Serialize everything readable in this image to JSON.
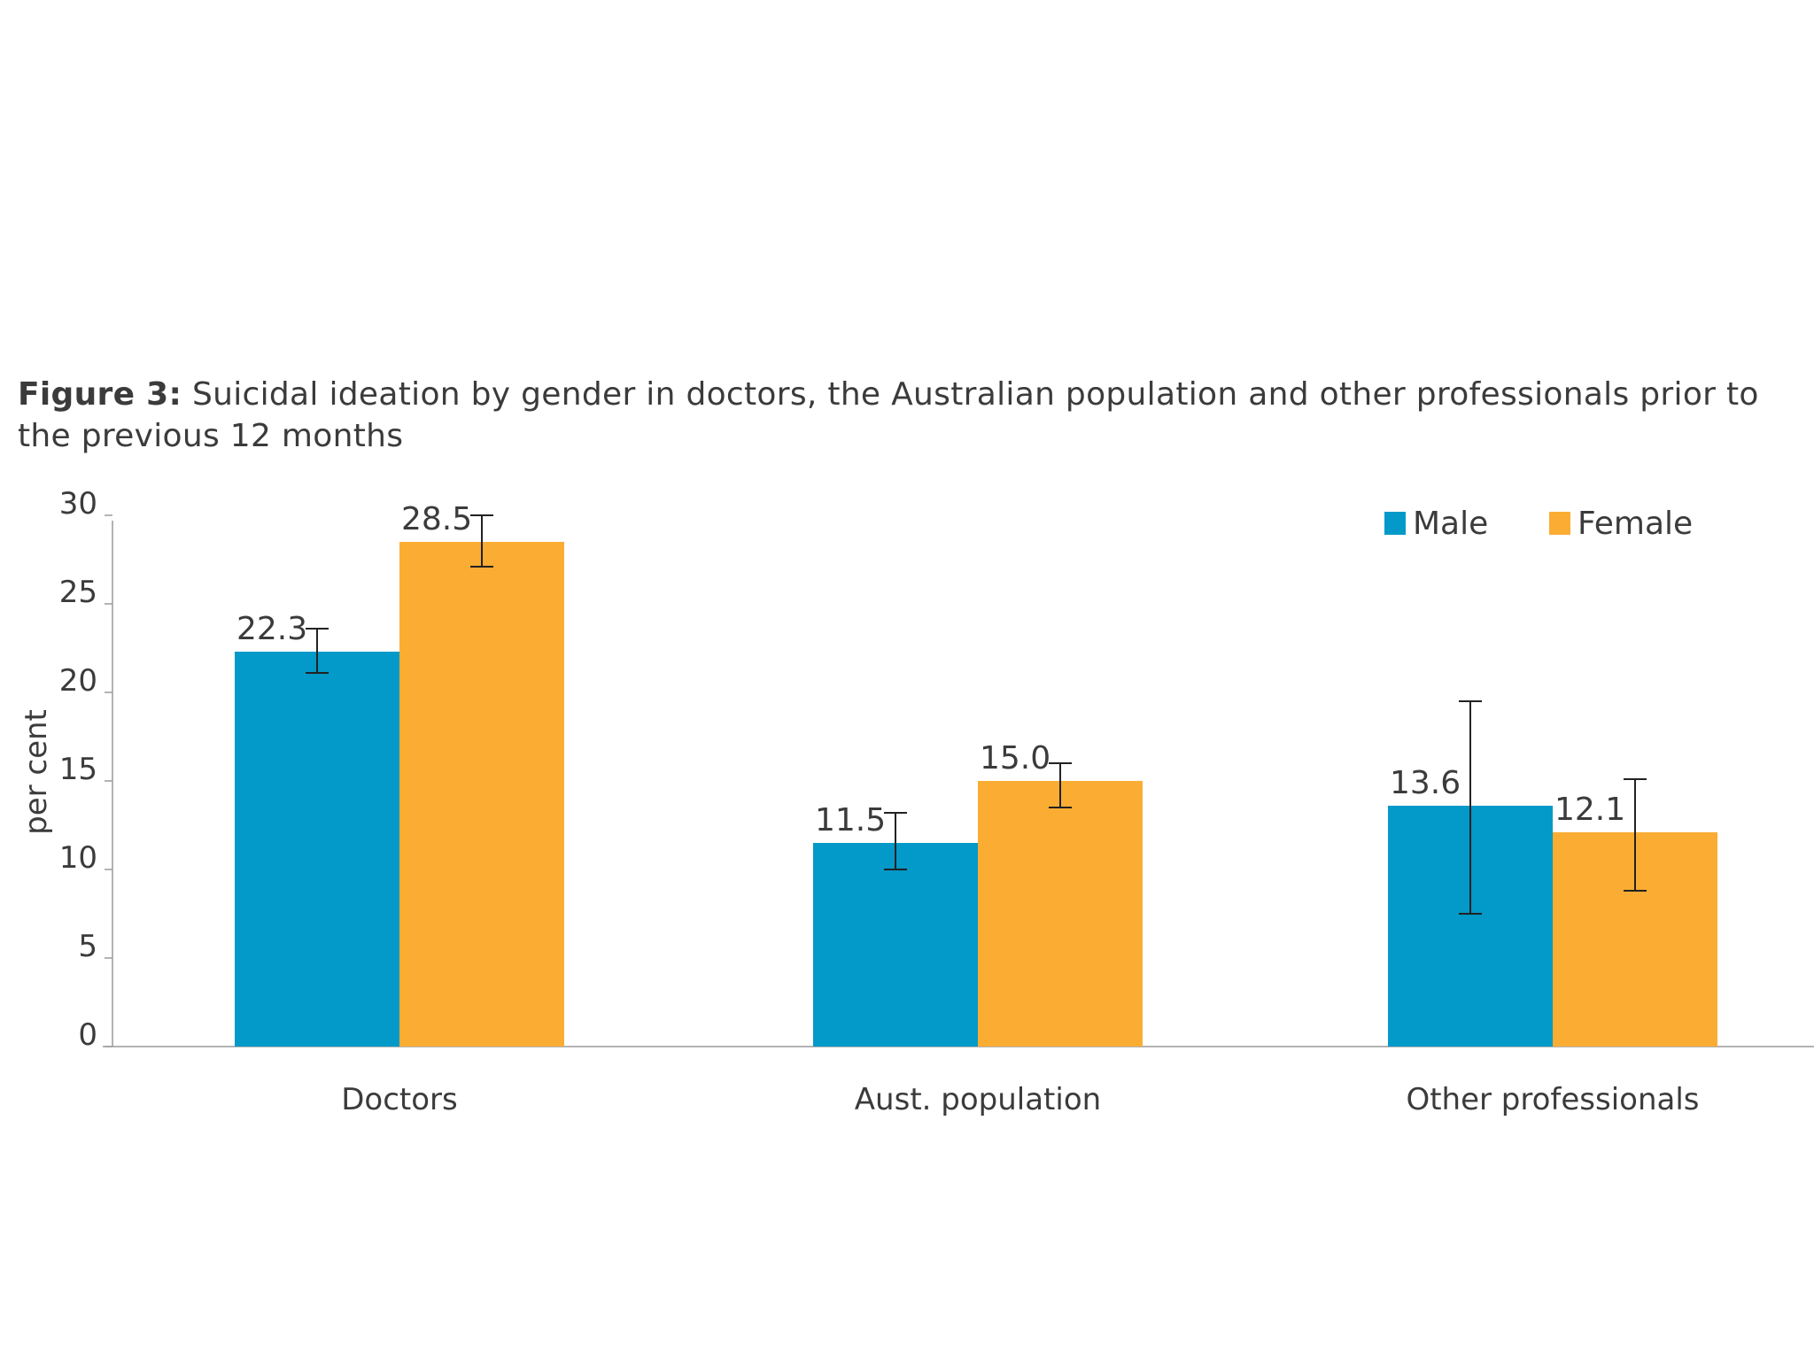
{
  "caption": {
    "label": "Figure 3:",
    "text": "Suicidal ideation by gender in doctors, the Australian population and other professionals prior to the previous 12 months"
  },
  "chart_data": {
    "type": "bar",
    "title": "Figure 3: Suicidal ideation by gender in doctors, the Australian population and other professionals prior to the previous 12 months",
    "xlabel": "",
    "ylabel": "per cent",
    "ylim": [
      0,
      30
    ],
    "yticks": [
      0,
      5,
      10,
      15,
      20,
      25,
      30
    ],
    "grid": false,
    "legend_position": "top-right",
    "categories": [
      "Doctors",
      "Aust. population",
      "Other professionals"
    ],
    "series": [
      {
        "name": "Male",
        "color": "#0399c8",
        "values": [
          22.3,
          11.5,
          13.6
        ],
        "labels": [
          "22.3",
          "11.5",
          "13.6"
        ],
        "error_low": [
          21.1,
          10.0,
          7.5
        ],
        "error_high": [
          23.6,
          13.2,
          19.5
        ]
      },
      {
        "name": "Female",
        "color": "#fbad33",
        "values": [
          28.5,
          15.0,
          12.1
        ],
        "labels": [
          "28.5",
          "15.0",
          "12.1"
        ],
        "error_low": [
          27.1,
          13.5,
          8.8
        ],
        "error_high": [
          30.0,
          16.0,
          15.1
        ]
      }
    ]
  }
}
